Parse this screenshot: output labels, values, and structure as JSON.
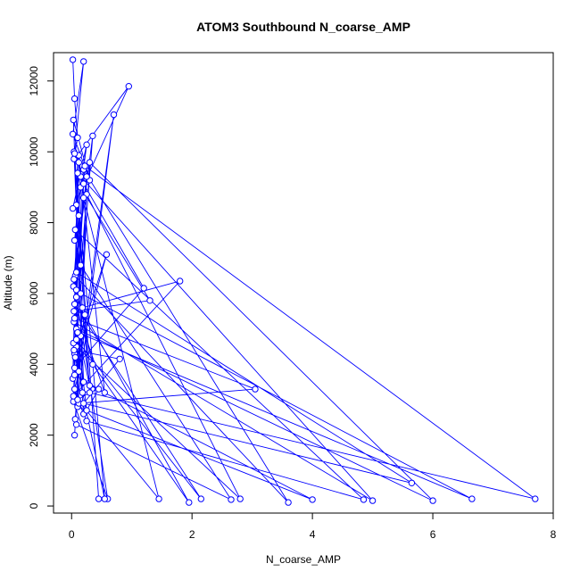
{
  "chart_data": {
    "type": "line",
    "title": "ATOM3 Southbound N_coarse_AMP",
    "xlabel": "N_coarse_AMP",
    "ylabel": "Altitude (m)",
    "xlim": [
      -0.3,
      8.0
    ],
    "ylim": [
      -200,
      12800
    ],
    "xticks": [
      "0",
      "2",
      "4",
      "6",
      "8"
    ],
    "yticks": [
      "0",
      "2000",
      "4000",
      "6000",
      "8000",
      "10000",
      "12000"
    ],
    "grid": false,
    "legend": "none",
    "series": [
      {
        "color": "#0000ff",
        "markers": "open-circle",
        "x": [
          0.02,
          0.05,
          0.1,
          0.04,
          0.2,
          0.02,
          0.3,
          0.03,
          0.08,
          0.12,
          0.15,
          0.05,
          0.25,
          0.02,
          0.95,
          0.1,
          0.06,
          3.6,
          0.2,
          0.04,
          1.3,
          0.15,
          0.03,
          0.35,
          0.08,
          2.8,
          0.25,
          0.05,
          0.58,
          0.02,
          0.1,
          5.0,
          0.04,
          0.18,
          0.12,
          0.03,
          0.6,
          0.08,
          0.22,
          7.7,
          0.05,
          0.2,
          0.04,
          0.25,
          0.15,
          0.06,
          0.7,
          0.12,
          0.03,
          1.8,
          0.18,
          0.05,
          0.3,
          6.0,
          0.08,
          0.1,
          4.0,
          0.2,
          0.04,
          0.55,
          0.06,
          0.15,
          2.65,
          0.08,
          0.03,
          0.2,
          1.45,
          0.1,
          0.25,
          4.85,
          0.06,
          0.3,
          0.05,
          3.05,
          0.12,
          0.08,
          0.35,
          1.95,
          0.22,
          0.05,
          0.45,
          0.25,
          0.1,
          6.65,
          0.15,
          0.05,
          1.2,
          0.2,
          0.08,
          2.15,
          0.05,
          0.55,
          0.12,
          0.04,
          0.8,
          0.2,
          5.65,
          0.08,
          0.1,
          0.3,
          0.05,
          0.45
        ],
        "y": [
          12600,
          11500,
          10400,
          9800,
          12550,
          10500,
          9200,
          10900,
          8500,
          9700,
          9300,
          7500,
          10200,
          8400,
          11850,
          9900,
          6500,
          100,
          9500,
          5500,
          5800,
          9000,
          6200,
          10450,
          4500,
          200,
          8800,
          4300,
          7100,
          3600,
          9400,
          150,
          5200,
          3200,
          8200,
          2950,
          200,
          5900,
          9600,
          200,
          3300,
          2600,
          6400,
          9300,
          4800,
          2450,
          11050,
          3800,
          3100,
          6350,
          5600,
          2000,
          9700,
          150,
          5000,
          2800,
          180,
          3500,
          10000,
          200,
          4200,
          6800,
          180,
          2300,
          4600,
          8700,
          200,
          3000,
          2400,
          180,
          7800,
          3400,
          5300,
          3300,
          2900,
          6100,
          4000,
          100,
          5400,
          3700,
          3300,
          2700,
          4900,
          200,
          6000,
          3900,
          6150,
          9100,
          4700,
          200,
          5700,
          3200,
          9900,
          4400,
          4150,
          2900,
          650,
          6600,
          3000,
          3200,
          9950,
          200
        ]
      }
    ]
  }
}
